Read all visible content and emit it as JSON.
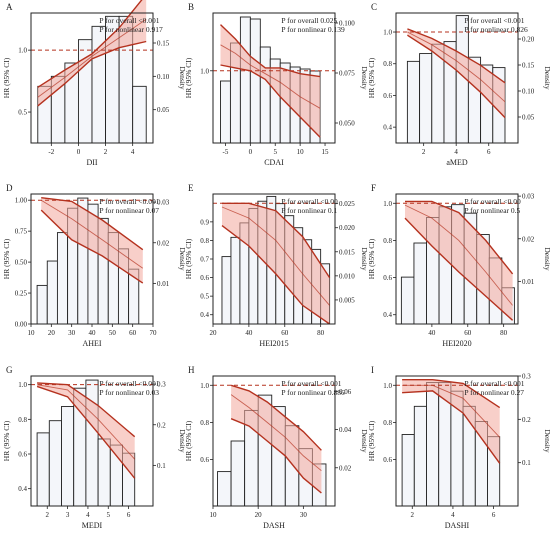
{
  "shared": {
    "ylabel_left": "HR (95% CI)",
    "ylabel_right": "Density"
  },
  "colors": {
    "bar_fill": "#f4f6fa",
    "bar_stroke": "#222222",
    "curve": "#b5321f",
    "band": "#f2a79c",
    "refline": "#b5321f"
  },
  "chart_data": [
    {
      "type": "bar",
      "panel": "A",
      "xlabel": "DII",
      "xlim": [
        -3.5,
        5.5
      ],
      "hr_lim": [
        0.25,
        1.3
      ],
      "dens_lim": [
        0,
        0.195
      ],
      "xticks": [
        -2,
        0,
        2,
        4
      ],
      "xtick_labels": [
        "-2",
        "0",
        "2",
        "4"
      ],
      "hr_ticks": [
        0.5,
        1.0
      ],
      "hr_tick_labels": [
        "0.5",
        "1.0"
      ],
      "dens_ticks": [
        0.05,
        0.1,
        0.15
      ],
      "dens_tick_labels": [
        "0.05",
        "0.10",
        "0.15"
      ],
      "bins": {
        "edges": [
          -3,
          -2,
          -1,
          0,
          1,
          2,
          3,
          4,
          5
        ],
        "density": [
          0.085,
          0.1,
          0.12,
          0.155,
          0.175,
          0.19,
          0.19,
          0.085
        ]
      },
      "hr_curve": {
        "x": [
          -3,
          -1,
          1,
          3,
          5
        ],
        "hr": [
          0.62,
          0.78,
          0.95,
          1.1,
          1.25
        ],
        "lower": [
          0.55,
          0.73,
          0.93,
          1.02,
          1.07
        ],
        "upper": [
          0.7,
          0.84,
          0.97,
          1.18,
          1.45
        ]
      },
      "annotations": [
        "P for overall <0.001",
        "P for nonlinear 0.917"
      ]
    },
    {
      "type": "bar",
      "panel": "B",
      "xlabel": "CDAI",
      "xlim": [
        -7.5,
        17
      ],
      "hr_lim": [
        0.75,
        1.2
      ],
      "dens_lim": [
        0.04,
        0.105
      ],
      "xticks": [
        -5,
        0,
        5,
        10,
        15
      ],
      "xtick_labels": [
        "-5",
        "0",
        "5",
        "10",
        "15"
      ],
      "hr_ticks": [
        1.0
      ],
      "hr_tick_labels": [
        "1.0"
      ],
      "dens_ticks": [
        0.05,
        0.075,
        0.1
      ],
      "dens_tick_labels": [
        "0.050",
        "0.075",
        "0.100"
      ],
      "bins": {
        "edges": [
          -6,
          -4,
          -2,
          0,
          2,
          4,
          6,
          8,
          10,
          12,
          14
        ],
        "density": [
          0.071,
          0.09,
          0.103,
          0.102,
          0.088,
          0.082,
          0.08,
          0.078,
          0.077,
          0.076
        ]
      },
      "hr_curve": {
        "x": [
          -6,
          -3,
          0,
          3,
          6,
          10,
          14
        ],
        "hr": [
          1.09,
          1.06,
          1.02,
          0.99,
          0.96,
          0.91,
          0.87
        ],
        "lower": [
          1.02,
          1.01,
          1.0,
          0.97,
          0.91,
          0.84,
          0.77
        ],
        "upper": [
          1.16,
          1.11,
          1.05,
          1.01,
          1.01,
          0.99,
          0.98
        ]
      },
      "annotations": [
        "P for overall 0.025",
        "P for nonlinear 0.139"
      ]
    },
    {
      "type": "bar",
      "panel": "C",
      "xlabel": "aMED",
      "xlim": [
        0.3,
        7.8
      ],
      "hr_lim": [
        0.3,
        1.12
      ],
      "dens_lim": [
        0,
        0.25
      ],
      "xticks": [
        2,
        4,
        6
      ],
      "xtick_labels": [
        "2",
        "4",
        "6"
      ],
      "hr_ticks": [
        0.4,
        0.6,
        0.8,
        1.0
      ],
      "hr_tick_labels": [
        "0.4",
        "0.6",
        "0.8",
        "1.0"
      ],
      "dens_ticks": [
        0.05,
        0.1,
        0.15,
        0.2
      ],
      "dens_tick_labels": [
        "0.05",
        "0.10",
        "0.15",
        "0.20"
      ],
      "bins": {
        "edges": [
          1,
          1.75,
          2.5,
          3.25,
          4,
          4.75,
          5.5,
          6.25,
          7
        ],
        "density": [
          0.157,
          0.172,
          0.19,
          0.195,
          0.245,
          0.165,
          0.15,
          0.145
        ]
      },
      "hr_curve": {
        "x": [
          1,
          2.5,
          4,
          5.5,
          7
        ],
        "hr": [
          1.0,
          0.92,
          0.82,
          0.7,
          0.56
        ],
        "lower": [
          0.98,
          0.88,
          0.76,
          0.62,
          0.46
        ],
        "upper": [
          1.02,
          0.96,
          0.88,
          0.79,
          0.68
        ]
      },
      "annotations": [
        "P for overall <0.001",
        "P for nonlinear 0.826"
      ]
    },
    {
      "type": "bar",
      "panel": "D",
      "xlabel": "AHEI",
      "xlim": [
        10,
        70
      ],
      "hr_lim": [
        0,
        1.05
      ],
      "dens_lim": [
        0,
        0.032
      ],
      "xticks": [
        10,
        20,
        30,
        40,
        50,
        60,
        70
      ],
      "xtick_labels": [
        "10",
        "20",
        "30",
        "40",
        "50",
        "60",
        "70"
      ],
      "hr_ticks": [
        0.0,
        0.25,
        0.5,
        0.75,
        1.0
      ],
      "hr_tick_labels": [
        "0.00",
        "0.25",
        "0.50",
        "0.75",
        "1.00"
      ],
      "dens_ticks": [
        0.01,
        0.02,
        0.03
      ],
      "dens_tick_labels": [
        "0.01",
        "0.02",
        "0.03"
      ],
      "bins": {
        "edges": [
          13,
          18,
          23,
          28,
          33,
          38,
          43,
          48,
          53,
          58,
          63
        ],
        "density": [
          0.0095,
          0.0155,
          0.0225,
          0.0285,
          0.031,
          0.0295,
          0.026,
          0.0225,
          0.0185,
          0.0135
        ]
      },
      "hr_curve": {
        "x": [
          15,
          30,
          45,
          65
        ],
        "hr": [
          1.0,
          0.85,
          0.68,
          0.45
        ],
        "lower": [
          0.92,
          0.68,
          0.55,
          0.33
        ],
        "upper": [
          1.02,
          0.99,
          0.84,
          0.6
        ]
      },
      "annotations": [
        "P for overall <0.001",
        "P for nonlinear 0.07"
      ]
    },
    {
      "type": "bar",
      "panel": "E",
      "xlabel": "HEI2015",
      "xlim": [
        20,
        88
      ],
      "hr_lim": [
        0.35,
        1.05
      ],
      "dens_lim": [
        0,
        0.027
      ],
      "xticks": [
        20,
        40,
        60,
        80
      ],
      "xtick_labels": [
        "20",
        "40",
        "60",
        "80"
      ],
      "hr_ticks": [
        0.4,
        0.5,
        0.6,
        0.7,
        0.8,
        0.9
      ],
      "hr_tick_labels": [
        "0.4",
        "0.5",
        "0.6",
        "0.7",
        "0.8",
        "0.9"
      ],
      "dens_ticks": [
        0.005,
        0.01,
        0.015,
        0.02,
        0.025
      ],
      "dens_tick_labels": [
        "0.005",
        "0.010",
        "0.015",
        "0.020",
        "0.025"
      ],
      "bins": {
        "edges": [
          25,
          30,
          35,
          40,
          45,
          50,
          55,
          60,
          65,
          70,
          75,
          80,
          85
        ],
        "density": [
          0.014,
          0.018,
          0.021,
          0.024,
          0.0255,
          0.0265,
          0.025,
          0.0225,
          0.02,
          0.0175,
          0.0155,
          0.0125
        ]
      },
      "hr_curve": {
        "x": [
          25,
          40,
          55,
          70,
          85
        ],
        "hr": [
          0.98,
          0.92,
          0.8,
          0.62,
          0.45
        ],
        "lower": [
          0.88,
          0.77,
          0.62,
          0.45,
          0.35
        ],
        "upper": [
          1.0,
          1.0,
          0.96,
          0.82,
          0.6
        ]
      },
      "annotations": [
        "P for overall <0.00",
        "P for nonlinear 0.1"
      ]
    },
    {
      "type": "bar",
      "panel": "F",
      "xlabel": "HEI2020",
      "xlim": [
        20,
        88
      ],
      "hr_lim": [
        0.35,
        1.05
      ],
      "dens_lim": [
        0,
        0.0305
      ],
      "xticks": [
        40,
        60,
        80
      ],
      "xtick_labels": [
        "40",
        "60",
        "80"
      ],
      "hr_ticks": [
        0.4,
        0.6,
        0.8,
        1.0
      ],
      "hr_tick_labels": [
        "0.4",
        "0.6",
        "0.8",
        "1.0"
      ],
      "dens_ticks": [
        0.01,
        0.02,
        0.03
      ],
      "dens_tick_labels": [
        "0.01",
        "0.02",
        "0.03"
      ],
      "bins": {
        "edges": [
          23,
          30,
          37,
          44,
          51,
          58,
          65,
          72,
          79,
          86
        ],
        "density": [
          0.011,
          0.019,
          0.025,
          0.0275,
          0.028,
          0.026,
          0.021,
          0.0155,
          0.0085
        ]
      },
      "hr_curve": {
        "x": [
          25,
          40,
          55,
          70,
          85
        ],
        "hr": [
          0.99,
          0.92,
          0.8,
          0.63,
          0.45
        ],
        "lower": [
          0.92,
          0.77,
          0.63,
          0.5,
          0.37
        ],
        "upper": [
          1.01,
          1.01,
          0.95,
          0.8,
          0.62
        ]
      },
      "annotations": [
        "P for overall <0.00",
        "P for nonlinear 0.5"
      ]
    },
    {
      "type": "bar",
      "panel": "G",
      "xlabel": "MEDI",
      "xlim": [
        1.2,
        7.2
      ],
      "hr_lim": [
        0.3,
        1.05
      ],
      "dens_lim": [
        0,
        0.32
      ],
      "xticks": [
        2,
        3,
        4,
        5,
        6
      ],
      "xtick_labels": [
        "2",
        "3",
        "4",
        "5",
        "6"
      ],
      "hr_ticks": [
        0.4,
        0.6,
        0.8,
        1.0
      ],
      "hr_tick_labels": [
        "0.4",
        "0.6",
        "0.8",
        "1.0"
      ],
      "dens_ticks": [
        0.1,
        0.2,
        0.3
      ],
      "dens_tick_labels": [
        "0.1",
        "0.2",
        "0.3"
      ],
      "bins": {
        "edges": [
          1.5,
          2.1,
          2.7,
          3.3,
          3.9,
          4.5,
          5.1,
          5.7,
          6.3
        ],
        "density": [
          0.18,
          0.21,
          0.245,
          0.29,
          0.31,
          0.165,
          0.15,
          0.13
        ]
      },
      "hr_curve": {
        "x": [
          1.5,
          3,
          4.5,
          6.3
        ],
        "hr": [
          1.0,
          0.97,
          0.8,
          0.57
        ],
        "lower": [
          0.99,
          0.93,
          0.72,
          0.46
        ],
        "upper": [
          1.01,
          1.0,
          0.88,
          0.7
        ]
      },
      "annotations": [
        "P for overall <0.001",
        "P for nonlinear 0.03"
      ]
    },
    {
      "type": "bar",
      "panel": "H",
      "xlabel": "DASH",
      "xlim": [
        10,
        37
      ],
      "hr_lim": [
        0.35,
        1.05
      ],
      "dens_lim": [
        0,
        0.068
      ],
      "xticks": [
        10,
        20,
        30
      ],
      "xtick_labels": [
        "10",
        "20",
        "30"
      ],
      "hr_ticks": [
        0.6,
        0.8,
        1.0
      ],
      "hr_tick_labels": [
        "0.6",
        "0.8",
        "1.0"
      ],
      "dens_ticks": [
        0.02,
        0.04,
        0.06
      ],
      "dens_tick_labels": [
        "0.02",
        "0.04",
        "0.06"
      ],
      "bins": {
        "edges": [
          11,
          14,
          17,
          20,
          23,
          26,
          29,
          32,
          35
        ],
        "density": [
          0.018,
          0.034,
          0.05,
          0.058,
          0.052,
          0.042,
          0.03,
          0.022
        ]
      },
      "hr_curve": {
        "x": [
          14,
          18,
          22,
          26,
          30,
          34
        ],
        "hr": [
          0.95,
          0.88,
          0.8,
          0.72,
          0.62,
          0.54
        ],
        "lower": [
          0.82,
          0.78,
          0.7,
          0.62,
          0.5,
          0.42
        ],
        "upper": [
          1.0,
          0.97,
          0.91,
          0.83,
          0.75,
          0.65
        ]
      },
      "annotations": [
        "P for overall <0.001",
        "P for nonlinear 0.886"
      ]
    },
    {
      "type": "bar",
      "panel": "I",
      "xlabel": "DASHI",
      "xlim": [
        1.2,
        7.2
      ],
      "hr_lim": [
        0.35,
        1.05
      ],
      "dens_lim": [
        0,
        0.3
      ],
      "xticks": [
        2,
        4,
        6
      ],
      "xtick_labels": [
        "2",
        "4",
        "6"
      ],
      "hr_ticks": [
        0.6,
        0.8,
        1.0
      ],
      "hr_tick_labels": [
        "0.6",
        "0.8",
        "1.0"
      ],
      "dens_ticks": [
        0.1,
        0.2,
        0.3
      ],
      "dens_tick_labels": [
        "0.1",
        "0.2",
        "0.3"
      ],
      "bins": {
        "edges": [
          1.5,
          2.1,
          2.7,
          3.3,
          3.9,
          4.5,
          5.1,
          5.7,
          6.3
        ],
        "density": [
          0.165,
          0.23,
          0.285,
          0.285,
          0.265,
          0.23,
          0.195,
          0.16
        ]
      },
      "hr_curve": {
        "x": [
          1.5,
          3,
          4.5,
          6.3
        ],
        "hr": [
          1.0,
          1.0,
          0.93,
          0.72
        ],
        "lower": [
          0.96,
          0.97,
          0.85,
          0.58
        ],
        "upper": [
          1.03,
          1.03,
          1.01,
          0.88
        ]
      },
      "annotations": [
        "P for overall <0.001",
        "P for nonlinear 0.27"
      ]
    }
  ]
}
